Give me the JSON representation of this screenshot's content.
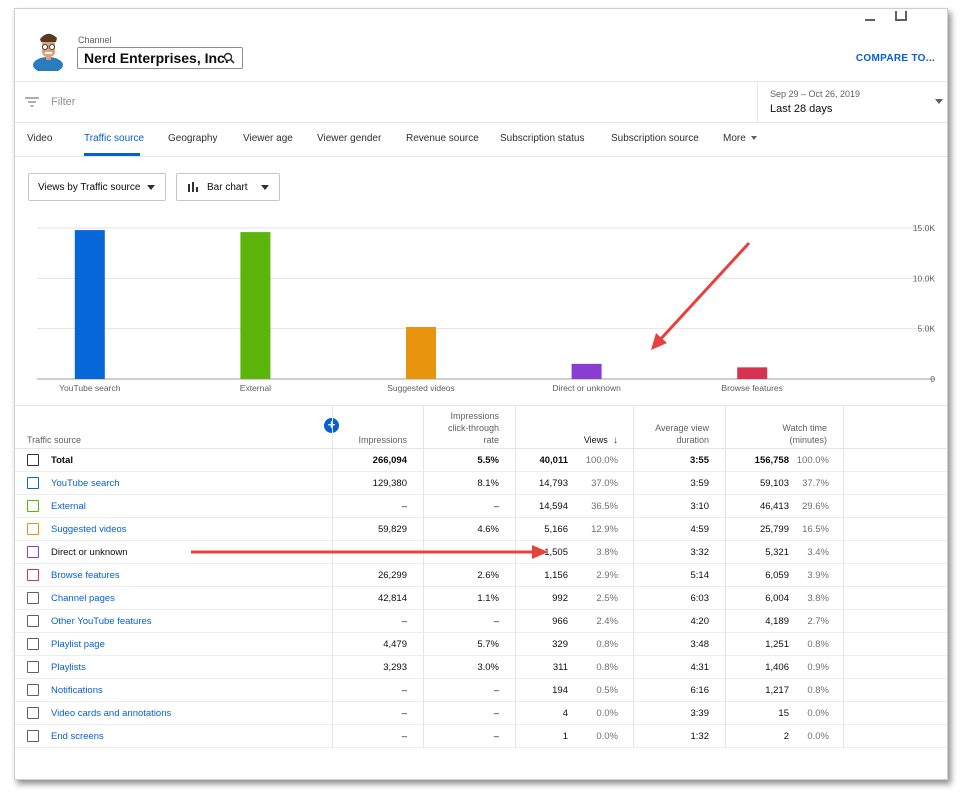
{
  "header": {
    "channel_label": "Channel",
    "channel_name": "Nerd Enterprises, Inc.",
    "compare_label": "COMPARE TO..."
  },
  "filter": {
    "placeholder": "Filter",
    "date_range": "Sep 29 – Oct 26, 2019",
    "date_label": "Last 28 days"
  },
  "tabs": [
    {
      "label": "Video"
    },
    {
      "label": "Traffic source"
    },
    {
      "label": "Geography"
    },
    {
      "label": "Viewer age"
    },
    {
      "label": "Viewer gender"
    },
    {
      "label": "Revenue source"
    },
    {
      "label": "Subscription status"
    },
    {
      "label": "Subscription source"
    },
    {
      "label": "More"
    }
  ],
  "active_tab": "Traffic source",
  "controls": {
    "metric_dropdown": "Views by Traffic source",
    "chart_dropdown": "Bar chart"
  },
  "chart_data": {
    "type": "bar",
    "categories": [
      "YouTube search",
      "External",
      "Suggested videos",
      "Direct or unknown",
      "Browse features"
    ],
    "values": [
      14793,
      14594,
      5166,
      1505,
      1156
    ],
    "colors": [
      "#0668d8",
      "#5cb50a",
      "#e9940e",
      "#8a3ed1",
      "#d5334f"
    ],
    "ylim": [
      0,
      15000
    ],
    "yticks": [
      "15.0K",
      "10.0K",
      "5.0K",
      "0"
    ],
    "ytick_values": [
      15000,
      10000,
      5000,
      0
    ],
    "grid": true
  },
  "table": {
    "headers": {
      "source": "Traffic source",
      "impressions": "Impressions",
      "ctr_line1": "Impressions",
      "ctr_line2": "click-through",
      "ctr_line3": "rate",
      "views": "Views",
      "avd_line1": "Average view",
      "avd_line2": "duration",
      "watch_line1": "Watch time",
      "watch_line2": "(minutes)"
    },
    "rows": [
      {
        "name": "Total",
        "impressions": "266,094",
        "ctr": "5.5%",
        "views": "40,011",
        "views_pct": "100.0%",
        "avd": "3:55",
        "watch": "156,758",
        "watch_pct": "100.0%"
      },
      {
        "name": "YouTube search",
        "impressions": "129,380",
        "ctr": "8.1%",
        "views": "14,793",
        "views_pct": "37.0%",
        "avd": "3:59",
        "watch": "59,103",
        "watch_pct": "37.7%"
      },
      {
        "name": "External",
        "impressions": "–",
        "ctr": "–",
        "views": "14,594",
        "views_pct": "36.5%",
        "avd": "3:10",
        "watch": "46,413",
        "watch_pct": "29.6%"
      },
      {
        "name": "Suggested videos",
        "impressions": "59,829",
        "ctr": "4.6%",
        "views": "5,166",
        "views_pct": "12.9%",
        "avd": "4:59",
        "watch": "25,799",
        "watch_pct": "16.5%"
      },
      {
        "name": "Direct or unknown",
        "impressions": "–",
        "ctr": "–",
        "views": "1,505",
        "views_pct": "3.8%",
        "avd": "3:32",
        "watch": "5,321",
        "watch_pct": "3.4%"
      },
      {
        "name": "Browse features",
        "impressions": "26,299",
        "ctr": "2.6%",
        "views": "1,156",
        "views_pct": "2.9%",
        "avd": "5:14",
        "watch": "6,059",
        "watch_pct": "3.9%"
      },
      {
        "name": "Channel pages",
        "impressions": "42,814",
        "ctr": "1.1%",
        "views": "992",
        "views_pct": "2.5%",
        "avd": "6:03",
        "watch": "6,004",
        "watch_pct": "3.8%"
      },
      {
        "name": "Other YouTube features",
        "impressions": "–",
        "ctr": "–",
        "views": "966",
        "views_pct": "2.4%",
        "avd": "4:20",
        "watch": "4,189",
        "watch_pct": "2.7%"
      },
      {
        "name": "Playlist page",
        "impressions": "4,479",
        "ctr": "5.7%",
        "views": "329",
        "views_pct": "0.8%",
        "avd": "3:48",
        "watch": "1,251",
        "watch_pct": "0.8%"
      },
      {
        "name": "Playlists",
        "impressions": "3,293",
        "ctr": "3.0%",
        "views": "311",
        "views_pct": "0.8%",
        "avd": "4:31",
        "watch": "1,406",
        "watch_pct": "0.9%"
      },
      {
        "name": "Notifications",
        "impressions": "–",
        "ctr": "–",
        "views": "194",
        "views_pct": "0.5%",
        "avd": "6:16",
        "watch": "1,217",
        "watch_pct": "0.8%"
      },
      {
        "name": "Video cards and annotations",
        "impressions": "–",
        "ctr": "–",
        "views": "4",
        "views_pct": "0.0%",
        "avd": "3:39",
        "watch": "15",
        "watch_pct": "0.0%"
      },
      {
        "name": "End screens",
        "impressions": "–",
        "ctr": "–",
        "views": "1",
        "views_pct": "0.0%",
        "avd": "1:32",
        "watch": "2",
        "watch_pct": "0.0%"
      }
    ]
  },
  "row_checkbox_colors": [
    "#303030",
    "#0668d8",
    "#5cb50a",
    "#e9940e",
    "#8a3ed1",
    "#d5334f",
    "#606060",
    "#606060",
    "#606060",
    "#606060",
    "#606060",
    "#606060",
    "#606060"
  ],
  "annotation_color": "#e8403c"
}
